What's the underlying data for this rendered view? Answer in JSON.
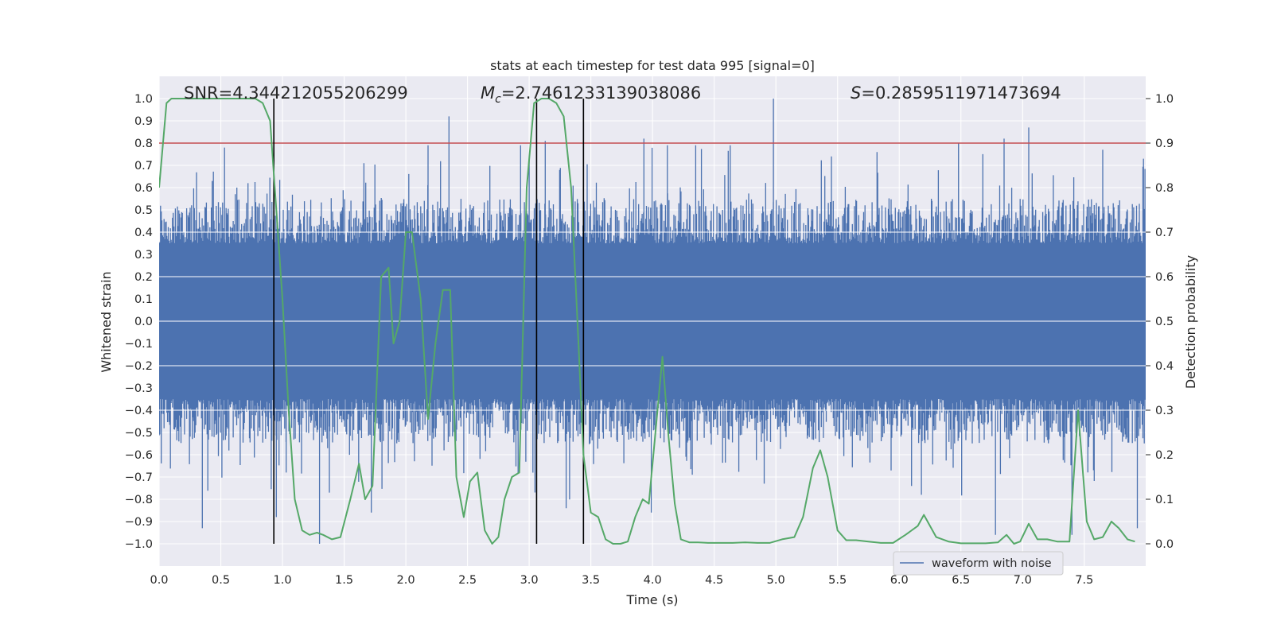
{
  "chart_data": {
    "type": "line",
    "title": "stats at each timestep for test data 995 [signal=0]",
    "xlabel": "Time (s)",
    "ylabel": "Whitened strain",
    "ylabel_right": "Detection probability",
    "xlim": [
      0,
      7.998
    ],
    "ylim": [
      -1.1,
      1.1
    ],
    "ylim_right": [
      -0.05,
      1.05
    ],
    "grid": true,
    "legend_placement": "lower-right",
    "x_ticks": [
      "0.0",
      "0.5",
      "1.0",
      "1.5",
      "2.0",
      "2.5",
      "3.0",
      "3.5",
      "4.0",
      "4.5",
      "5.0",
      "5.5",
      "6.0",
      "6.5",
      "7.0",
      "7.5"
    ],
    "y_ticks": [
      "1.0",
      "0.9",
      "0.8",
      "0.7",
      "0.6",
      "0.5",
      "0.4",
      "0.3",
      "0.2",
      "0.1",
      "0.0",
      "−0.1",
      "−0.2",
      "−0.3",
      "−0.4",
      "−0.5",
      "−0.6",
      "−0.7",
      "−0.8",
      "−0.9",
      "−1.0"
    ],
    "y_ticks_right": [
      "1.0",
      "0.9",
      "0.8",
      "0.7",
      "0.6",
      "0.5",
      "0.4",
      "0.3",
      "0.2",
      "0.1",
      "0.0"
    ],
    "annotations": {
      "snr": "SNR=4.344212055206299",
      "mc_symbol": "M",
      "mc_sub": "c",
      "mc_value": "=2.7461233139038086",
      "s_symbol": "S",
      "s_value": "=0.2859511971473694"
    },
    "legend": [
      {
        "label": "waveform with noise",
        "color": "#4c72b0"
      }
    ],
    "colors": {
      "waveform": "#4c72b0",
      "probability": "#55a868",
      "threshold": "#c44e52",
      "vlines": "#000000",
      "plot_bg": "#eaeaf2",
      "grid": "#ffffff"
    },
    "threshold_right": 0.9,
    "vertical_lines_x": [
      0.93,
      3.06,
      3.44
    ],
    "series": [
      {
        "name": "waveform with noise",
        "axis": "left",
        "description_values": "noise envelope",
        "envelope_top_typical": [
          0.35,
          0.55
        ],
        "envelope_bottom_typical": [
          -0.55,
          -0.35
        ],
        "spikes": [
          {
            "x": 0.35,
            "y": -0.93
          },
          {
            "x": 0.44,
            "y": 0.62
          },
          {
            "x": 0.43,
            "y": 0.63
          },
          {
            "x": 0.53,
            "y": 0.78
          },
          {
            "x": 0.63,
            "y": 0.6
          },
          {
            "x": 0.95,
            "y": -0.88
          },
          {
            "x": 1.03,
            "y": -0.68
          },
          {
            "x": 1.3,
            "y": -1.0
          },
          {
            "x": 1.38,
            "y": -0.77
          },
          {
            "x": 1.66,
            "y": 0.71
          },
          {
            "x": 1.72,
            "y": -0.86
          },
          {
            "x": 2.35,
            "y": 0.92
          },
          {
            "x": 2.18,
            "y": 0.79
          },
          {
            "x": 2.93,
            "y": 0.79
          },
          {
            "x": 3.0,
            "y": 0.73
          },
          {
            "x": 3.13,
            "y": 0.81
          },
          {
            "x": 3.3,
            "y": -0.84
          },
          {
            "x": 3.99,
            "y": -0.86
          },
          {
            "x": 3.93,
            "y": 0.82
          },
          {
            "x": 4.12,
            "y": 0.79
          },
          {
            "x": 4.35,
            "y": 0.79
          },
          {
            "x": 4.63,
            "y": 0.79
          },
          {
            "x": 4.98,
            "y": 1.0
          },
          {
            "x": 5.45,
            "y": 0.74
          },
          {
            "x": 5.82,
            "y": 0.76
          },
          {
            "x": 6.18,
            "y": -0.78
          },
          {
            "x": 6.48,
            "y": 0.8
          },
          {
            "x": 6.78,
            "y": -0.96
          },
          {
            "x": 6.85,
            "y": 0.82
          },
          {
            "x": 7.05,
            "y": 0.87
          },
          {
            "x": 7.4,
            "y": -0.96
          },
          {
            "x": 7.65,
            "y": 0.77
          },
          {
            "x": 7.93,
            "y": -0.93
          },
          {
            "x": 7.98,
            "y": 0.73
          }
        ]
      },
      {
        "name": "",
        "axis": "right",
        "x": [
          0.0,
          0.06,
          0.1,
          0.15,
          0.2,
          0.3,
          0.4,
          0.5,
          0.6,
          0.7,
          0.78,
          0.84,
          0.9,
          0.95,
          1.0,
          1.05,
          1.1,
          1.16,
          1.22,
          1.28,
          1.33,
          1.4,
          1.47,
          1.55,
          1.62,
          1.67,
          1.73,
          1.8,
          1.86,
          1.9,
          1.95,
          2.0,
          2.05,
          2.12,
          2.18,
          2.24,
          2.3,
          2.36,
          2.41,
          2.47,
          2.52,
          2.58,
          2.64,
          2.7,
          2.75,
          2.8,
          2.86,
          2.92,
          2.98,
          3.04,
          3.1,
          3.16,
          3.22,
          3.28,
          3.34,
          3.4,
          3.44,
          3.5,
          3.56,
          3.62,
          3.68,
          3.74,
          3.8,
          3.86,
          3.92,
          3.97,
          4.02,
          4.08,
          4.13,
          4.18,
          4.23,
          4.3,
          4.37,
          4.45,
          4.55,
          4.65,
          4.75,
          4.85,
          4.95,
          5.05,
          5.15,
          5.22,
          5.3,
          5.36,
          5.42,
          5.5,
          5.57,
          5.65,
          5.75,
          5.85,
          5.95,
          6.05,
          6.15,
          6.2,
          6.3,
          6.4,
          6.5,
          6.6,
          6.7,
          6.8,
          6.87,
          6.93,
          6.98,
          7.05,
          7.12,
          7.2,
          7.28,
          7.38,
          7.45,
          7.52,
          7.58,
          7.65,
          7.72,
          7.78,
          7.85,
          7.91
        ],
        "values": [
          0.8,
          0.99,
          1.0,
          1.0,
          1.0,
          1.0,
          1.0,
          1.0,
          1.0,
          1.0,
          1.0,
          0.99,
          0.95,
          0.75,
          0.55,
          0.3,
          0.1,
          0.03,
          0.02,
          0.025,
          0.02,
          0.01,
          0.015,
          0.1,
          0.18,
          0.1,
          0.13,
          0.6,
          0.62,
          0.45,
          0.5,
          0.7,
          0.7,
          0.55,
          0.28,
          0.45,
          0.57,
          0.57,
          0.15,
          0.06,
          0.14,
          0.16,
          0.03,
          0.0,
          0.015,
          0.1,
          0.15,
          0.16,
          0.8,
          0.99,
          1.0,
          1.0,
          0.99,
          0.96,
          0.8,
          0.45,
          0.2,
          0.07,
          0.06,
          0.01,
          0.0,
          0.0,
          0.005,
          0.06,
          0.1,
          0.09,
          0.24,
          0.42,
          0.24,
          0.09,
          0.01,
          0.003,
          0.003,
          0.002,
          0.002,
          0.002,
          0.003,
          0.002,
          0.002,
          0.01,
          0.015,
          0.06,
          0.17,
          0.21,
          0.15,
          0.03,
          0.008,
          0.008,
          0.005,
          0.002,
          0.002,
          0.02,
          0.04,
          0.065,
          0.015,
          0.005,
          0.001,
          0.001,
          0.001,
          0.003,
          0.02,
          0.0,
          0.005,
          0.045,
          0.01,
          0.01,
          0.005,
          0.005,
          0.3,
          0.05,
          0.01,
          0.015,
          0.05,
          0.035,
          0.01,
          0.005
        ]
      }
    ]
  }
}
